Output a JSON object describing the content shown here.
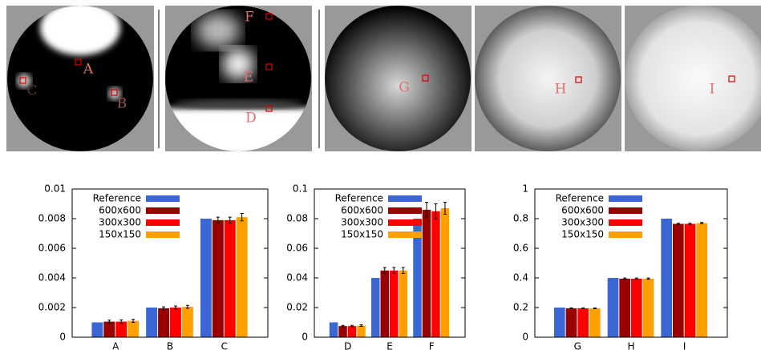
{
  "chart_data": [
    {
      "type": "bar",
      "categories": [
        "A",
        "B",
        "C"
      ],
      "ylim": [
        0,
        0.01
      ],
      "yticks": [
        0,
        0.002,
        0.004,
        0.006,
        0.008,
        0.01
      ],
      "legend": "top-left",
      "series": [
        {
          "name": "Reference",
          "color": "#3a67d4",
          "values": [
            0.001,
            0.002,
            0.008
          ]
        },
        {
          "name": "600x600",
          "color": "#990000",
          "values": [
            0.00105,
            0.00195,
            0.0079
          ],
          "errors": [
            0.0001,
            0.0001,
            0.0002
          ]
        },
        {
          "name": "300x300",
          "color": "#ff0000",
          "values": [
            0.00105,
            0.002,
            0.0079
          ],
          "errors": [
            0.00012,
            0.0001,
            0.0002
          ]
        },
        {
          "name": "150x150",
          "color": "#ffa000",
          "values": [
            0.0011,
            0.00205,
            0.0081
          ],
          "errors": [
            0.0001,
            0.0001,
            0.00025
          ]
        }
      ]
    },
    {
      "type": "bar",
      "categories": [
        "D",
        "E",
        "F"
      ],
      "ylim": [
        0,
        0.1
      ],
      "yticks": [
        0,
        0.02,
        0.04,
        0.06,
        0.08,
        0.1
      ],
      "legend": "top-left",
      "series": [
        {
          "name": "Reference",
          "color": "#3a67d4",
          "values": [
            0.01,
            0.04,
            0.08
          ]
        },
        {
          "name": "600x600",
          "color": "#990000",
          "values": [
            0.0075,
            0.045,
            0.086
          ],
          "errors": [
            0.0005,
            0.002,
            0.005
          ]
        },
        {
          "name": "300x300",
          "color": "#ff0000",
          "values": [
            0.0075,
            0.045,
            0.085
          ],
          "errors": [
            0.0005,
            0.002,
            0.005
          ]
        },
        {
          "name": "150x150",
          "color": "#ffa000",
          "values": [
            0.0078,
            0.045,
            0.087
          ],
          "errors": [
            0.0005,
            0.002,
            0.004
          ]
        }
      ]
    },
    {
      "type": "bar",
      "categories": [
        "G",
        "H",
        "I"
      ],
      "ylim": [
        0,
        1
      ],
      "yticks": [
        0,
        0.2,
        0.4,
        0.6,
        0.8,
        1
      ],
      "legend": "top-left",
      "series": [
        {
          "name": "Reference",
          "color": "#3a67d4",
          "values": [
            0.2,
            0.4,
            0.8
          ]
        },
        {
          "name": "600x600",
          "color": "#990000",
          "values": [
            0.195,
            0.395,
            0.765
          ],
          "errors": [
            0.003,
            0.004,
            0.004
          ]
        },
        {
          "name": "300x300",
          "color": "#ff0000",
          "values": [
            0.195,
            0.395,
            0.765
          ],
          "errors": [
            0.003,
            0.004,
            0.004
          ]
        },
        {
          "name": "150x150",
          "color": "#ffa000",
          "values": [
            0.195,
            0.395,
            0.77
          ],
          "errors": [
            0.003,
            0.004,
            0.004
          ]
        }
      ]
    }
  ]
}
